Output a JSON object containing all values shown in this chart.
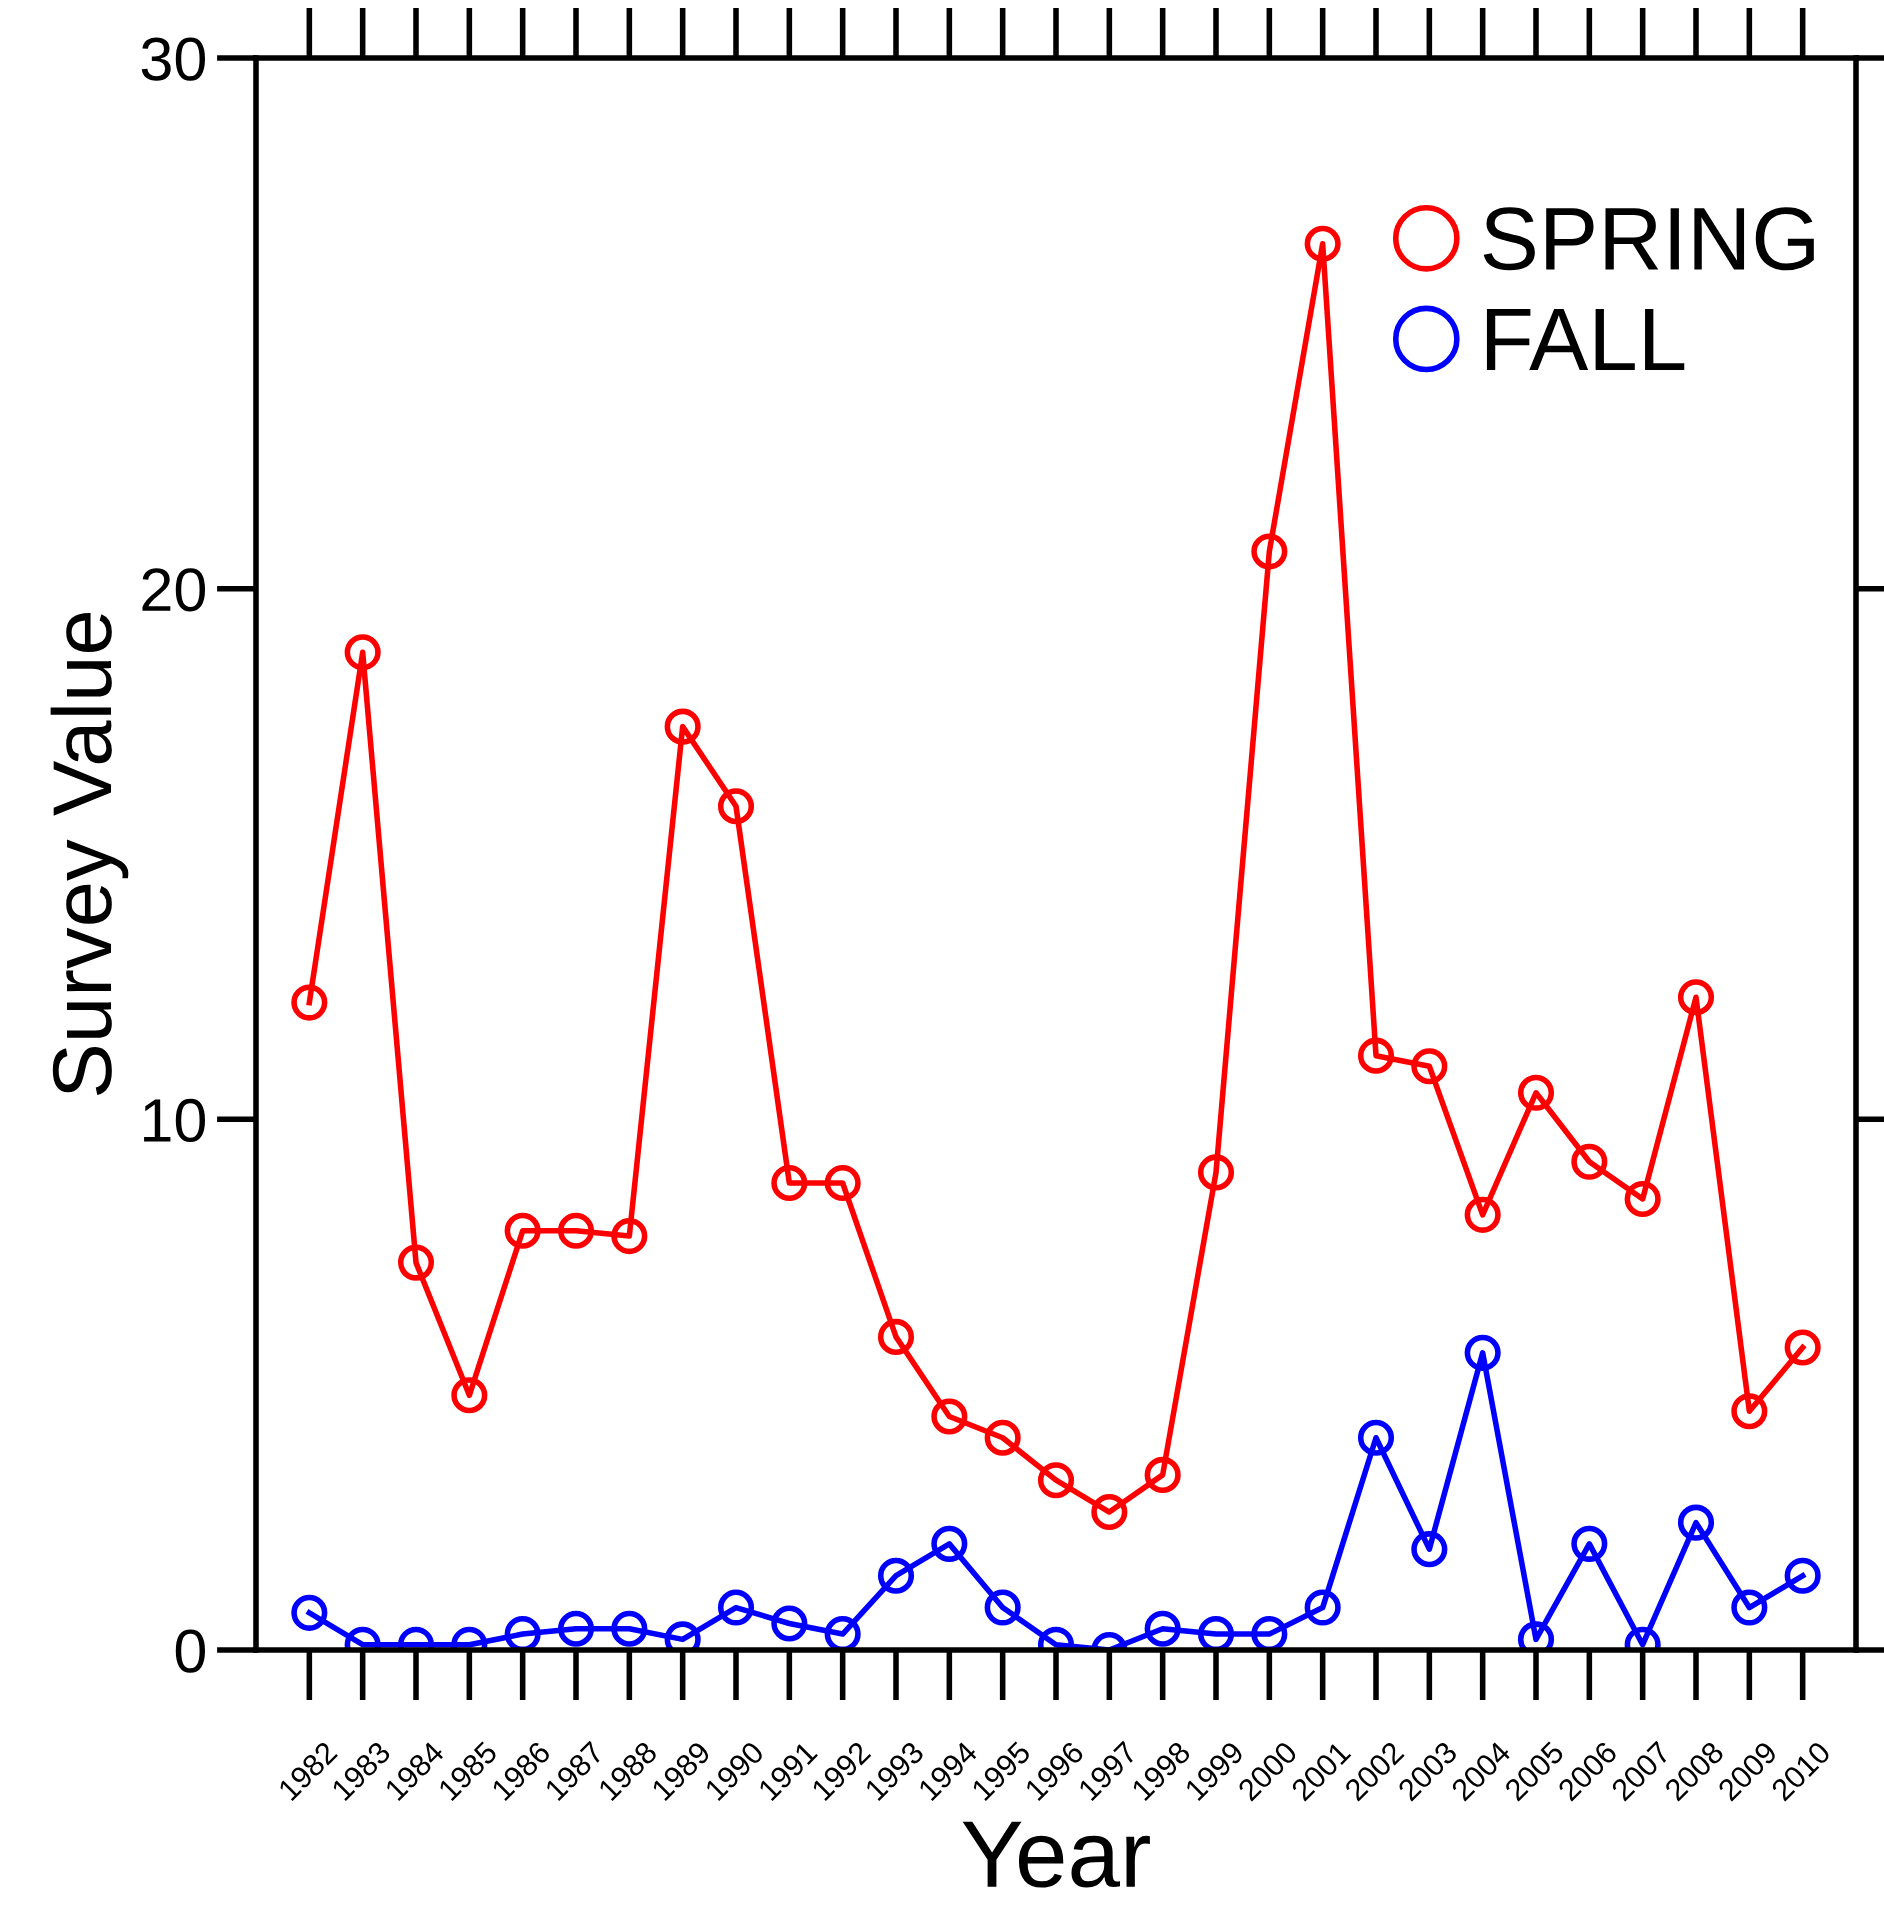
{
  "chart_data": {
    "type": "line",
    "xlabel": "Year",
    "ylabel": "Survey Value",
    "x": [
      1982,
      1983,
      1984,
      1985,
      1986,
      1987,
      1988,
      1989,
      1990,
      1991,
      1992,
      1993,
      1994,
      1995,
      1996,
      1997,
      1998,
      1999,
      2000,
      2001,
      2002,
      2003,
      2004,
      2005,
      2006,
      2007,
      2008,
      2009,
      2010
    ],
    "series": [
      {
        "name": "SPRING",
        "color": "#ff0000",
        "values": [
          12.2,
          18.8,
          7.3,
          4.8,
          7.9,
          7.9,
          7.8,
          17.4,
          15.9,
          8.8,
          8.8,
          5.9,
          4.4,
          4.0,
          3.2,
          2.6,
          3.3,
          9.0,
          20.7,
          26.5,
          11.2,
          11.0,
          8.2,
          10.5,
          9.2,
          8.5,
          12.3,
          4.5,
          5.7
        ]
      },
      {
        "name": "FALL",
        "color": "#0000ff",
        "values": [
          0.7,
          0.1,
          0.1,
          0.1,
          0.3,
          0.4,
          0.4,
          0.2,
          0.8,
          0.5,
          0.3,
          1.4,
          2.0,
          0.8,
          0.1,
          0.0,
          0.4,
          0.3,
          0.3,
          0.8,
          4.0,
          1.9,
          5.6,
          0.2,
          2.0,
          0.1,
          2.4,
          0.8,
          1.4
        ]
      }
    ],
    "xlim": [
      1981,
      2011
    ],
    "xticks": [
      1982,
      1983,
      1984,
      1985,
      1986,
      1987,
      1988,
      1989,
      1990,
      1991,
      1992,
      1993,
      1994,
      1995,
      1996,
      1997,
      1998,
      1999,
      2000,
      2001,
      2002,
      2003,
      2004,
      2005,
      2006,
      2007,
      2008,
      2009,
      2010
    ],
    "ylim": [
      0,
      30
    ],
    "yticks": [
      0,
      10,
      20,
      30
    ],
    "marker": "circle",
    "line_style": "solid",
    "legend": "top right",
    "grid": false
  }
}
